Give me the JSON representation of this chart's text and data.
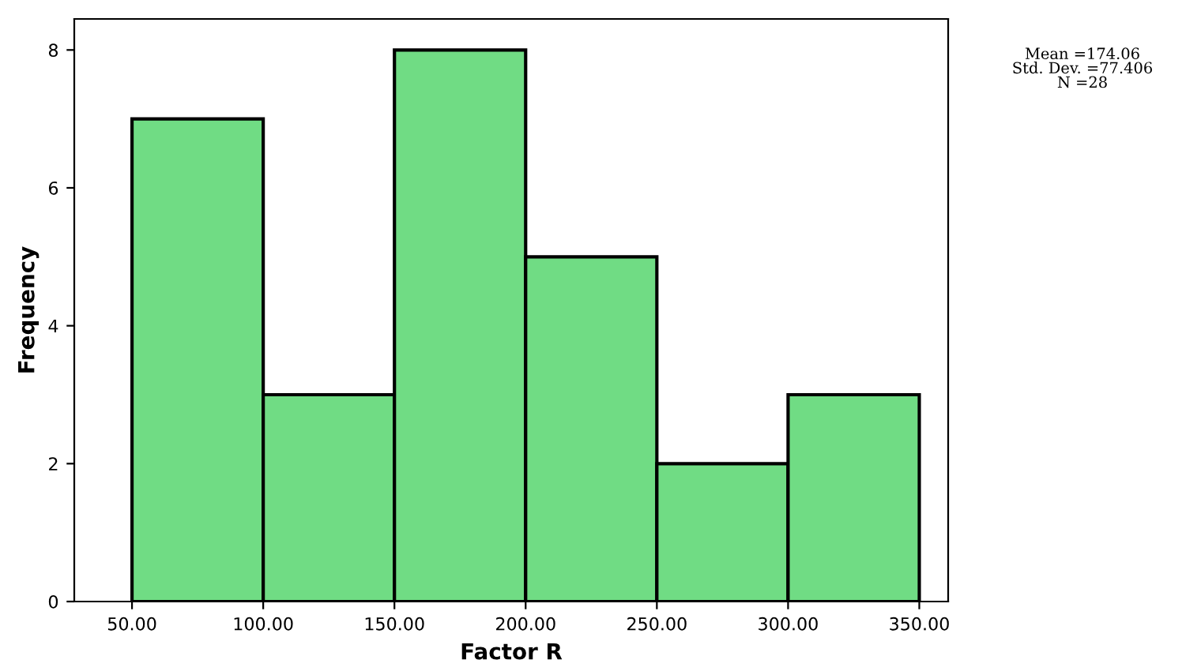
{
  "chart_data": {
    "type": "histogram",
    "xlabel": "Factor R",
    "ylabel": "Frequency",
    "bins": [
      50,
      100,
      150,
      200,
      250,
      300,
      350
    ],
    "values": [
      7,
      3,
      8,
      5,
      2,
      3
    ],
    "color": "#70dc84",
    "xlim": [
      28,
      361
    ],
    "ylim": [
      0,
      8.45
    ],
    "xticks": [
      {
        "value": 50,
        "label": "50.00"
      },
      {
        "value": 100,
        "label": "100.00"
      },
      {
        "value": 150,
        "label": "150.00"
      },
      {
        "value": 200,
        "label": "200.00"
      },
      {
        "value": 250,
        "label": "250.00"
      },
      {
        "value": 300,
        "label": "300.00"
      },
      {
        "value": 350,
        "label": "350.00"
      }
    ],
    "yticks": [
      0,
      2,
      4,
      6,
      8
    ],
    "grid": false,
    "legend": false,
    "annotations": [
      "Mean =174.06\nStd. Dev. =77.406\nN =28"
    ]
  }
}
